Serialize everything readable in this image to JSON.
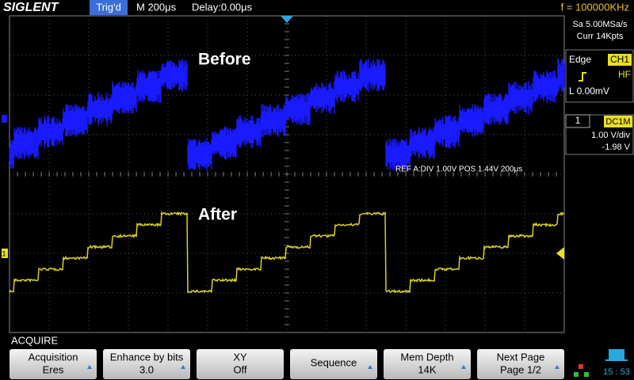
{
  "header": {
    "logo": "SIGLENT",
    "trigger_status": "Trig'd",
    "timebase": "M 200μs",
    "delay": "Delay:0.00μs",
    "frequency": "f = 100000KHz"
  },
  "acquisition": {
    "sample_rate": "Sa 5.00MSa/s",
    "memory": "Curr 14Kpts"
  },
  "trigger": {
    "mode": "Edge",
    "source": "CH1",
    "coupling": "HF",
    "level": "L  0.00mV"
  },
  "channel": {
    "number": "1",
    "coupling": "DC1M",
    "scale": "1.00 V/div",
    "offset": "-1.98 V"
  },
  "annotations": {
    "before": "Before",
    "after": "After",
    "ref": "REF  A:DIV 1.00V   POS 1.44V  200μs"
  },
  "menu": {
    "title": "ACQUIRE",
    "buttons": [
      {
        "label": "Acquisition",
        "value": "Eres"
      },
      {
        "label": "Enhance by bits",
        "value": "3.0"
      },
      {
        "label": "XY",
        "value": "Off"
      },
      {
        "label": "Sequence"
      },
      {
        "label": "Mem Depth",
        "value": "14K"
      },
      {
        "label": "Next Page",
        "value": "Page 1/2"
      }
    ]
  },
  "clock": "15 : 53"
}
